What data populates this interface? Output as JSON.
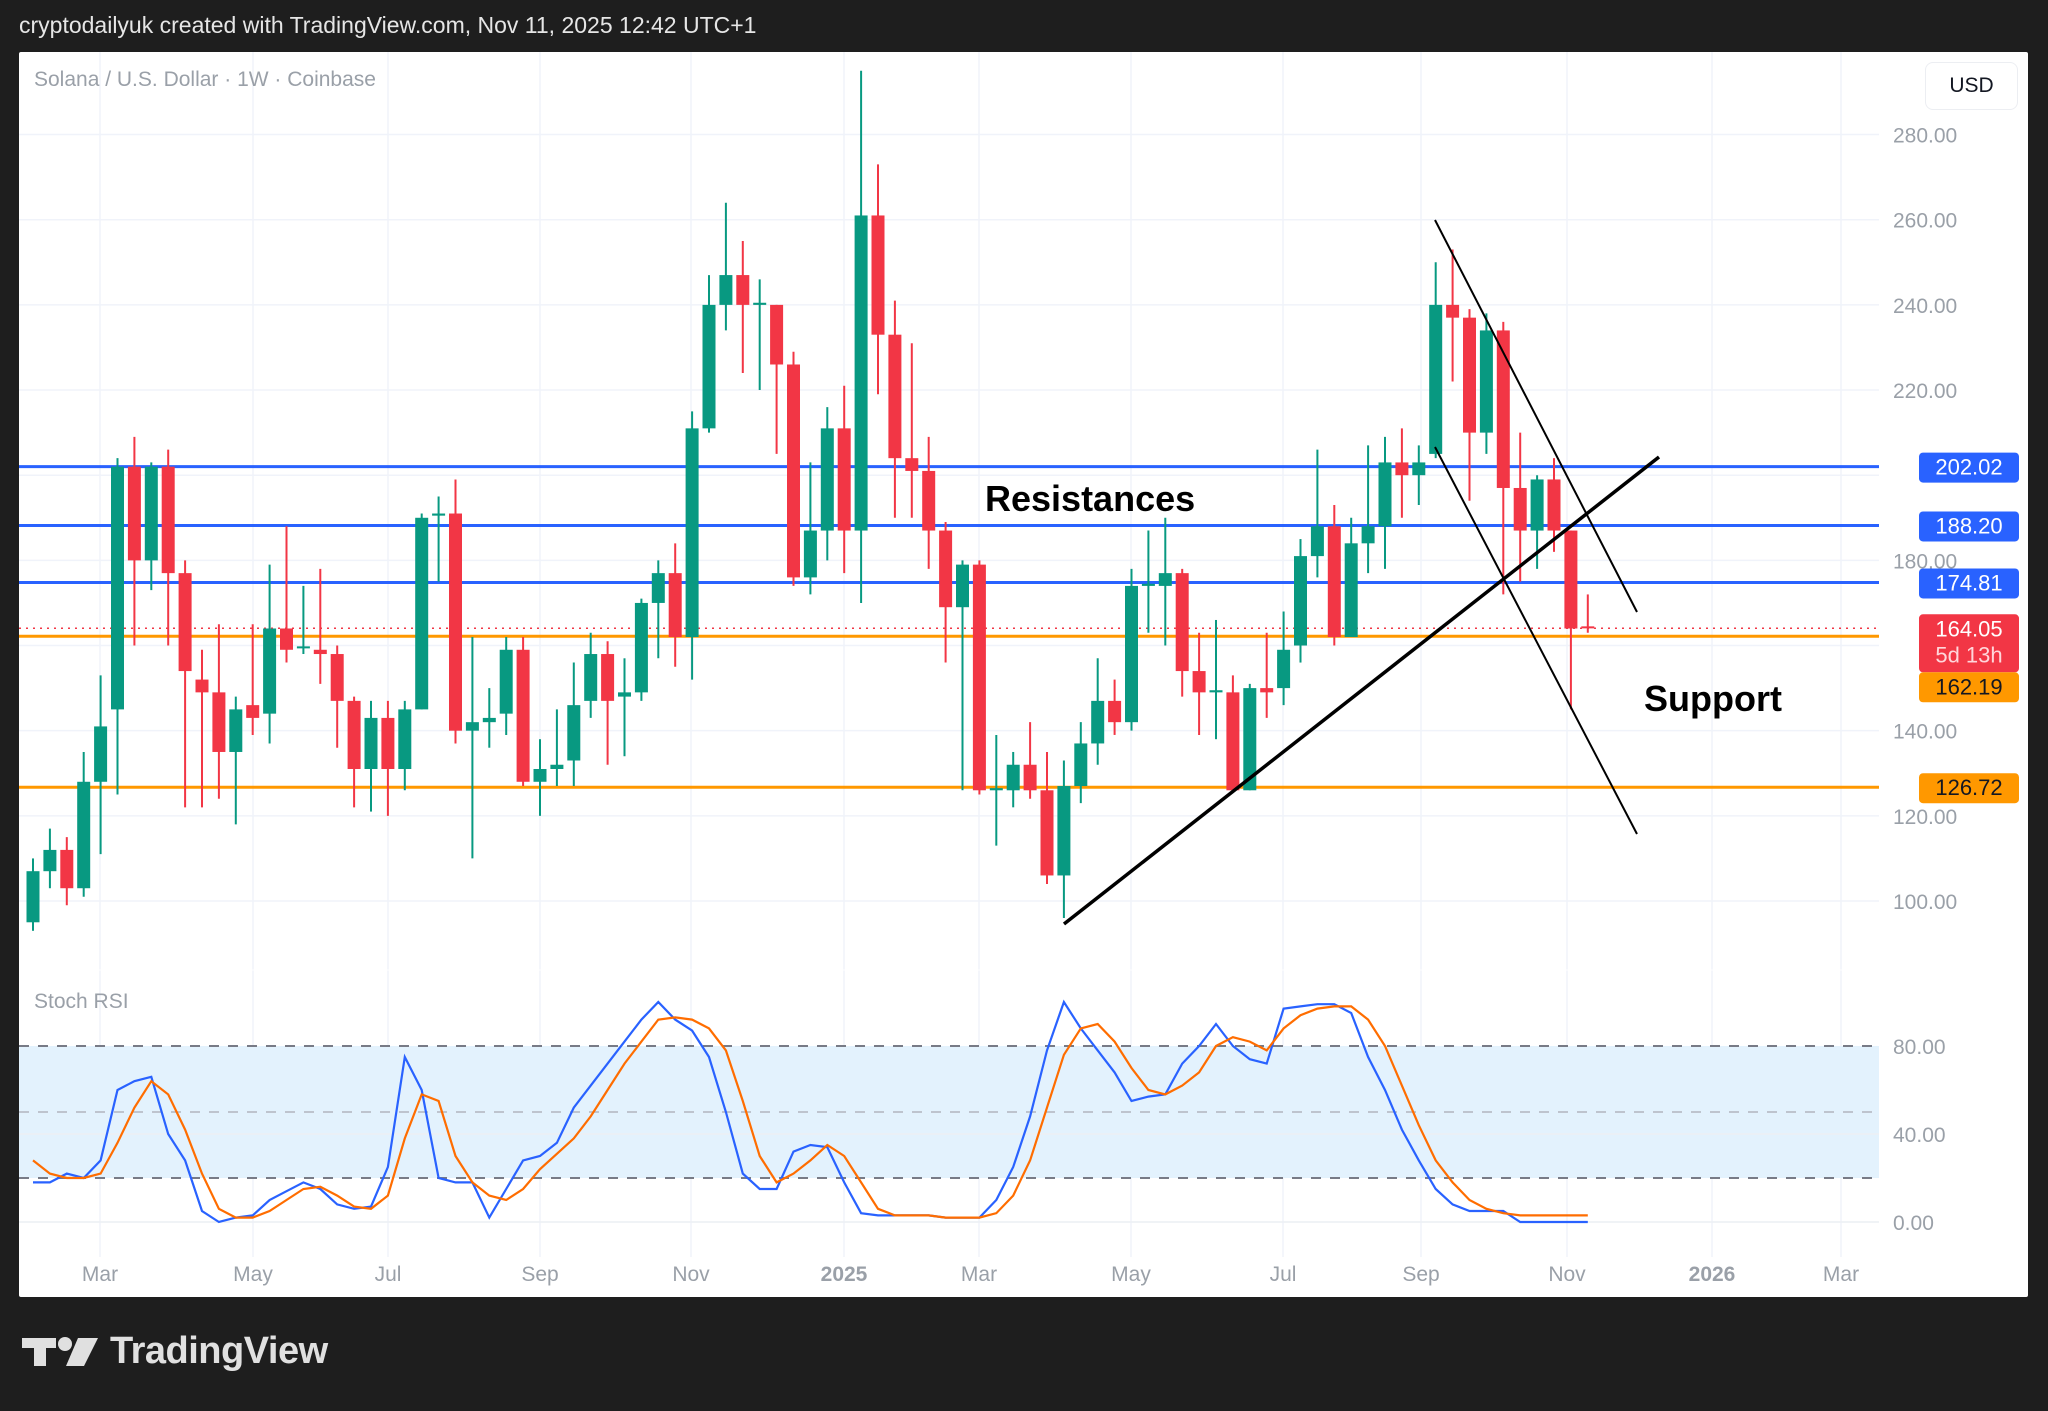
{
  "header": {
    "caption": "cryptodailyuk created with TradingView.com, Nov 11, 2025 12:42 UTC+1"
  },
  "chart": {
    "legend": "Solana / U.S. Dollar · 1W · Coinbase",
    "currency_button": "USD",
    "indicator_label": "Stoch RSI",
    "annotations": {
      "resistances": "Resistances",
      "support": "Support"
    },
    "colors": {
      "up": "#089981",
      "down": "#f23645",
      "resistance": "#2962ff",
      "support": "#ff9800",
      "stoch_k": "#2962ff",
      "stoch_d": "#ff6d00",
      "band": "#e3f2fd"
    }
  },
  "footer": {
    "brand": "TradingView"
  },
  "chart_data": [
    {
      "type": "candlestick",
      "title": "Solana / U.S. Dollar · 1W · Coinbase",
      "xlabel": "",
      "ylabel": "USD",
      "ylim": [
        88,
        300
      ],
      "y_ticks": [
        100,
        120,
        140,
        160,
        180,
        200,
        220,
        240,
        260,
        280
      ],
      "y_tick_labels": [
        "100.00",
        "120.00",
        "140.00",
        "",
        "180.00",
        "",
        "220.00",
        "240.00",
        "260.00",
        "280.00"
      ],
      "x_tick_labels": [
        "Mar",
        "May",
        "Jul",
        "Sep",
        "Nov",
        "2025",
        "Mar",
        "May",
        "Jul",
        "Sep",
        "Nov",
        "2026",
        "Mar"
      ],
      "grid": true,
      "horizontal_levels": [
        {
          "label": "202.02",
          "value": 202.02,
          "color": "#2962ff",
          "kind": "resistance"
        },
        {
          "label": "188.20",
          "value": 188.2,
          "color": "#2962ff",
          "kind": "resistance"
        },
        {
          "label": "174.81",
          "value": 174.81,
          "color": "#2962ff",
          "kind": "resistance"
        },
        {
          "label": "162.19",
          "value": 162.19,
          "color": "#ff9800",
          "kind": "support"
        },
        {
          "label": "126.72",
          "value": 126.72,
          "color": "#ff9800",
          "kind": "support"
        }
      ],
      "last_price": {
        "value": "164.05",
        "countdown": "5d 13h"
      },
      "annotations": [
        "Resistances",
        "Support"
      ],
      "candles": [
        [
          95,
          110,
          93,
          107
        ],
        [
          107,
          117,
          103,
          112
        ],
        [
          112,
          115,
          99,
          103
        ],
        [
          103,
          135,
          101,
          128
        ],
        [
          128,
          153,
          111,
          141
        ],
        [
          145,
          204,
          125,
          202
        ],
        [
          202,
          209,
          160,
          180
        ],
        [
          180,
          203,
          173,
          202
        ],
        [
          202,
          206,
          160,
          177
        ],
        [
          177,
          180,
          122,
          154
        ],
        [
          152,
          159,
          122,
          149
        ],
        [
          149,
          165,
          124,
          135
        ],
        [
          135,
          148,
          118,
          145
        ],
        [
          146,
          165,
          139,
          143
        ],
        [
          144,
          179,
          137,
          164
        ],
        [
          164,
          188,
          156,
          159
        ],
        [
          159.5,
          174,
          158,
          159.8
        ],
        [
          159,
          178,
          151,
          158
        ],
        [
          158,
          160,
          136,
          147
        ],
        [
          147,
          148,
          122,
          131
        ],
        [
          131,
          147,
          121,
          143
        ],
        [
          143,
          147,
          120,
          131
        ],
        [
          131,
          147,
          126,
          145
        ],
        [
          145,
          191,
          145,
          190
        ],
        [
          190.5,
          195,
          175,
          191
        ],
        [
          191,
          199,
          137,
          140
        ],
        [
          140,
          162,
          110,
          142
        ],
        [
          142,
          150,
          136,
          143
        ],
        [
          144,
          162,
          139,
          159
        ],
        [
          159,
          162,
          127,
          128
        ],
        [
          128,
          138,
          120,
          131
        ],
        [
          131,
          145,
          127,
          132
        ],
        [
          133,
          156,
          127,
          146
        ],
        [
          147,
          163,
          143,
          158
        ],
        [
          158,
          161,
          132,
          147
        ],
        [
          148,
          157,
          134,
          149
        ],
        [
          149,
          171,
          147,
          170
        ],
        [
          170,
          180,
          157,
          177
        ],
        [
          177,
          184,
          155,
          162
        ],
        [
          162,
          215,
          152,
          211
        ],
        [
          211,
          247,
          210,
          240
        ],
        [
          240,
          264,
          234,
          247
        ],
        [
          247,
          255,
          224,
          240
        ],
        [
          240,
          246,
          220,
          240.5
        ],
        [
          240,
          240,
          205,
          226
        ],
        [
          226,
          229,
          174,
          176
        ],
        [
          176,
          203,
          172,
          187
        ],
        [
          187,
          216,
          180,
          211
        ],
        [
          211,
          221,
          177,
          187
        ],
        [
          187,
          295,
          170,
          261
        ],
        [
          261,
          273,
          219,
          233
        ],
        [
          233,
          241,
          190,
          204
        ],
        [
          204,
          231,
          190,
          201
        ],
        [
          201,
          209,
          178,
          187
        ],
        [
          187,
          189,
          156,
          169
        ],
        [
          169,
          180,
          126,
          179
        ],
        [
          179,
          180,
          125,
          126
        ],
        [
          126,
          139,
          113,
          126.5
        ],
        [
          126,
          135,
          122,
          132
        ],
        [
          132,
          142,
          124,
          126
        ],
        [
          126,
          135,
          104,
          106
        ],
        [
          106,
          133,
          96,
          127
        ],
        [
          127,
          142,
          123,
          137
        ],
        [
          137,
          157,
          132,
          147
        ],
        [
          147,
          152,
          139,
          142
        ],
        [
          142,
          178,
          140,
          174
        ],
        [
          174,
          187,
          163,
          174.5
        ],
        [
          174,
          190,
          160,
          177
        ],
        [
          177,
          178,
          148,
          154
        ],
        [
          154,
          163,
          139,
          149
        ],
        [
          149,
          166,
          138,
          149.5
        ],
        [
          149,
          153,
          126,
          126
        ],
        [
          126,
          151,
          126,
          150
        ],
        [
          150,
          163,
          143,
          149
        ],
        [
          150,
          168,
          146,
          159
        ],
        [
          160,
          185,
          156,
          181
        ],
        [
          181,
          206,
          176,
          188
        ],
        [
          188,
          193,
          160,
          162
        ],
        [
          162,
          190,
          162,
          184
        ],
        [
          184,
          207,
          177,
          188
        ],
        [
          188,
          209,
          178,
          203
        ],
        [
          203,
          211,
          190,
          200
        ],
        [
          200,
          207,
          193,
          203
        ],
        [
          205,
          250,
          204,
          240
        ],
        [
          240,
          253,
          222,
          237
        ],
        [
          237,
          239,
          194,
          210
        ],
        [
          210,
          238,
          205,
          234
        ],
        [
          234,
          236,
          172,
          197
        ],
        [
          197,
          210,
          175,
          187
        ],
        [
          187,
          200,
          178,
          199
        ],
        [
          199,
          204,
          182,
          187
        ],
        [
          187,
          187,
          145,
          164
        ],
        [
          164.5,
          172,
          163,
          164.05
        ]
      ]
    },
    {
      "type": "line",
      "title": "Stoch RSI",
      "ylim": [
        -5,
        110
      ],
      "y_ticks": [
        0,
        40,
        80
      ],
      "y_tick_labels": [
        "0.00",
        "40.00",
        "80.00"
      ],
      "bands": {
        "upper": 80,
        "middle": 50,
        "lower": 20
      },
      "series": [
        {
          "name": "K",
          "color": "#2962ff",
          "values": [
            18,
            18,
            22,
            20,
            28,
            60,
            64,
            66,
            40,
            28,
            5,
            0,
            2,
            3,
            10,
            14,
            18,
            15,
            8,
            6,
            7,
            25,
            75,
            60,
            20,
            18,
            18,
            2,
            15,
            28,
            30,
            36,
            52,
            62,
            72,
            82,
            92,
            100,
            92,
            87,
            75,
            50,
            22,
            15,
            15,
            32,
            35,
            34,
            18,
            4,
            3,
            3,
            3,
            3,
            2,
            2,
            2,
            10,
            25,
            48,
            78,
            100,
            88,
            78,
            68,
            55,
            57,
            58,
            72,
            80,
            90,
            80,
            74,
            72,
            97,
            98,
            99,
            99,
            95,
            75,
            60,
            42,
            28,
            15,
            8,
            5,
            5,
            5,
            0,
            0,
            0,
            0,
            0
          ]
        },
        {
          "name": "D",
          "color": "#ff6d00",
          "values": [
            28,
            22,
            20,
            20,
            22,
            36,
            52,
            64,
            58,
            42,
            22,
            6,
            2,
            2,
            5,
            10,
            15,
            16,
            12,
            7,
            6,
            12,
            38,
            58,
            55,
            30,
            18,
            12,
            10,
            15,
            24,
            31,
            38,
            48,
            60,
            72,
            82,
            92,
            93,
            92,
            88,
            78,
            55,
            30,
            18,
            22,
            28,
            35,
            30,
            18,
            6,
            3,
            3,
            3,
            2,
            2,
            2,
            4,
            12,
            28,
            52,
            76,
            88,
            90,
            82,
            70,
            60,
            58,
            62,
            68,
            80,
            84,
            82,
            78,
            88,
            94,
            97,
            98,
            98,
            92,
            80,
            62,
            44,
            28,
            18,
            10,
            6,
            4,
            3,
            3,
            3,
            3,
            3
          ]
        }
      ]
    }
  ]
}
